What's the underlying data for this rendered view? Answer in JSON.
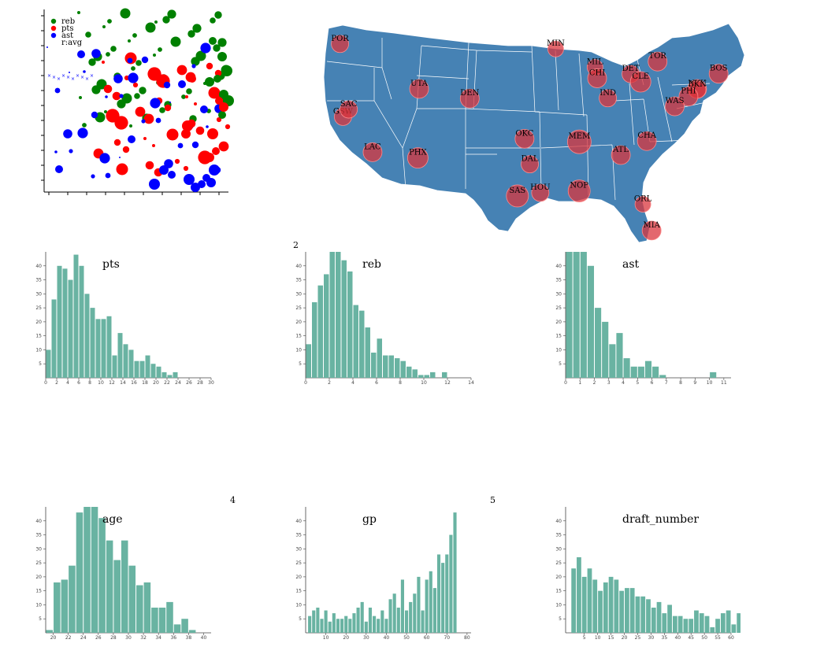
{
  "page_numbers": {
    "n2": "2",
    "n4": "4",
    "n5": "5"
  },
  "colors": {
    "reb": "#008000",
    "pts": "#ff0000",
    "ast": "#0000ff",
    "bar": "#69b3a2",
    "state_fill": "#4682b4",
    "city_fill": "#d9363e"
  },
  "chart_data": [
    {
      "type": "scatter",
      "legend": [
        "reb",
        "pts",
        "ast",
        "r:avg"
      ],
      "series": [
        {
          "name": "reb",
          "points": [
            [
              40,
              245
            ],
            [
              35,
              275
            ],
            [
              46,
              281
            ],
            [
              52,
              252
            ],
            [
              60,
              264
            ],
            [
              62,
              250
            ],
            [
              55,
              268
            ],
            [
              70,
              238
            ],
            [
              72,
              256
            ],
            [
              68,
              276
            ],
            [
              76,
              240
            ],
            [
              80,
              292
            ],
            [
              84,
              262
            ],
            [
              88,
              282
            ],
            [
              90,
              260
            ],
            [
              96,
              272
            ],
            [
              100,
              288
            ],
            [
              102,
              254
            ],
            [
              106,
              270
            ],
            [
              110,
              286
            ],
            [
              114,
              260
            ],
            [
              118,
              276
            ],
            [
              122,
              292
            ],
            [
              126,
              268
            ],
            [
              130,
              280
            ],
            [
              134,
              264
            ],
            [
              138,
              288
            ],
            [
              142,
              276
            ],
            [
              146,
              292
            ],
            [
              150,
              270
            ],
            [
              154,
              282
            ],
            [
              158,
              266
            ],
            [
              162,
              288
            ],
            [
              166,
              278
            ],
            [
              170,
              292
            ],
            [
              174,
              272
            ],
            [
              178,
              286
            ],
            [
              182,
              262
            ],
            [
              186,
              280
            ],
            [
              190,
              292
            ],
            [
              195,
              270
            ],
            [
              200,
              288
            ],
            [
              205,
              276
            ],
            [
              210,
              266
            ],
            [
              215,
              284
            ],
            [
              222,
              296
            ],
            [
              228,
              278
            ],
            [
              235,
              262
            ],
            [
              242,
              286
            ],
            [
              250,
              272
            ],
            [
              258,
              252
            ],
            [
              266,
              264
            ],
            [
              274,
              238
            ],
            [
              282,
              214
            ],
            [
              288,
              196
            ]
          ]
        },
        {
          "name": "pts",
          "points": [
            [
              36,
              52
            ],
            [
              44,
              64
            ],
            [
              50,
              76
            ],
            [
              56,
              84
            ],
            [
              62,
              80
            ],
            [
              66,
              96
            ],
            [
              70,
              106
            ],
            [
              74,
              112
            ],
            [
              78,
              120
            ],
            [
              82,
              124
            ],
            [
              86,
              130
            ],
            [
              90,
              144
            ],
            [
              94,
              150
            ],
            [
              98,
              156
            ],
            [
              102,
              160
            ],
            [
              106,
              162
            ],
            [
              110,
              168
            ],
            [
              114,
              172
            ],
            [
              118,
              178
            ],
            [
              122,
              180
            ],
            [
              126,
              184
            ],
            [
              130,
              190
            ],
            [
              134,
              194
            ],
            [
              140,
              198
            ],
            [
              146,
              200
            ],
            [
              152,
              204
            ],
            [
              158,
              206
            ],
            [
              164,
              210
            ],
            [
              170,
              212
            ],
            [
              176,
              214
            ],
            [
              182,
              216
            ],
            [
              188,
              218
            ],
            [
              194,
              220
            ],
            [
              200,
              222
            ],
            [
              206,
              224
            ],
            [
              212,
              226
            ],
            [
              218,
              228
            ],
            [
              224,
              230
            ],
            [
              232,
              232
            ],
            [
              240,
              234
            ]
          ]
        },
        {
          "name": "ast",
          "points": [
            [
              1.2,
              20
            ],
            [
              1.5,
              22
            ],
            [
              1.8,
              24
            ],
            [
              2,
              26
            ],
            [
              2.2,
              28
            ],
            [
              2.4,
              30
            ],
            [
              2.6,
              34
            ],
            [
              3,
              36
            ],
            [
              3.2,
              38
            ],
            [
              3.5,
              40
            ],
            [
              3.8,
              42
            ],
            [
              4,
              44
            ],
            [
              4.2,
              46
            ],
            [
              4.5,
              48
            ],
            [
              4.8,
              50
            ],
            [
              5,
              52
            ],
            [
              5.5,
              54
            ],
            [
              6,
              56
            ],
            [
              6.5,
              58
            ],
            [
              7,
              60
            ],
            [
              7.5,
              62
            ],
            [
              8,
              64
            ],
            [
              8.5,
              66
            ],
            [
              9,
              68
            ],
            [
              9.5,
              70
            ],
            [
              10,
              72
            ],
            [
              10.5,
              74
            ],
            [
              11,
              76
            ],
            [
              11.5,
              78
            ],
            [
              12,
              80
            ],
            [
              1,
              30
            ],
            [
              2,
              34
            ],
            [
              3,
              38
            ],
            [
              4,
              42
            ],
            [
              5,
              46
            ],
            [
              6,
              50
            ],
            [
              7,
              54
            ],
            [
              8,
              58
            ],
            [
              9,
              62
            ],
            [
              10,
              66
            ]
          ]
        },
        {
          "name": "r:avg",
          "points": [
            [
              1,
              20
            ],
            [
              2,
              40
            ],
            [
              3,
              60
            ],
            [
              4,
              80
            ],
            [
              5,
              100
            ],
            [
              6,
              120
            ],
            [
              7,
              140
            ],
            [
              8,
              160
            ],
            [
              9,
              180
            ],
            [
              10,
              200
            ]
          ]
        }
      ]
    },
    {
      "type": "map",
      "cities": [
        {
          "name": "POR",
          "lon": -122.68,
          "lat": 45.52,
          "r": 11
        },
        {
          "name": "MIN",
          "lon": -93.27,
          "lat": 44.98,
          "r": 10
        },
        {
          "name": "TOR",
          "lon": -79.38,
          "lat": 43.65,
          "r": 12
        },
        {
          "name": "MIL",
          "lon": -87.91,
          "lat": 43.04,
          "r": 10
        },
        {
          "name": "NYK",
          "lon": -73.99,
          "lat": 40.75,
          "r": 12
        },
        {
          "name": "DET",
          "lon": -83.05,
          "lat": 42.33,
          "r": 11
        },
        {
          "name": "BOS",
          "lon": -71.06,
          "lat": 42.36,
          "r": 12
        },
        {
          "name": "CHI",
          "lon": -87.62,
          "lat": 41.88,
          "r": 12
        },
        {
          "name": "CLE",
          "lon": -81.69,
          "lat": 41.5,
          "r": 13
        },
        {
          "name": "UTA",
          "lon": -111.89,
          "lat": 40.76,
          "r": 12
        },
        {
          "name": "BKN",
          "lon": -73.97,
          "lat": 40.68,
          "r": 11
        },
        {
          "name": "IND",
          "lon": -86.16,
          "lat": 39.77,
          "r": 11
        },
        {
          "name": "PHI",
          "lon": -75.17,
          "lat": 39.95,
          "r": 12
        },
        {
          "name": "DEN",
          "lon": -104.99,
          "lat": 39.74,
          "r": 12
        },
        {
          "name": "WAS",
          "lon": -77.04,
          "lat": 38.91,
          "r": 12
        },
        {
          "name": "GSW",
          "lon": -122.27,
          "lat": 37.8,
          "r": 11
        },
        {
          "name": "SAC",
          "lon": -121.49,
          "lat": 38.58,
          "r": 11
        },
        {
          "name": "CHA",
          "lon": -80.84,
          "lat": 35.23,
          "r": 12
        },
        {
          "name": "OKC",
          "lon": -97.52,
          "lat": 35.47,
          "r": 12
        },
        {
          "name": "MEM",
          "lon": -90.05,
          "lat": 35.15,
          "r": 15
        },
        {
          "name": "LAC",
          "lon": -118.24,
          "lat": 34.05,
          "r": 12
        },
        {
          "name": "ATL",
          "lon": -84.39,
          "lat": 33.75,
          "r": 12
        },
        {
          "name": "DAL",
          "lon": -96.8,
          "lat": 32.78,
          "r": 11
        },
        {
          "name": "PHX",
          "lon": -112.07,
          "lat": 33.45,
          "r": 13
        },
        {
          "name": "NOP",
          "lon": -90.07,
          "lat": 29.95,
          "r": 14
        },
        {
          "name": "SAS",
          "lon": -98.49,
          "lat": 29.42,
          "r": 14
        },
        {
          "name": "HOU",
          "lon": -95.37,
          "lat": 29.76,
          "r": 11
        },
        {
          "name": "ORL",
          "lon": -81.38,
          "lat": 28.54,
          "r": 10
        },
        {
          "name": "MIA",
          "lon": -80.19,
          "lat": 25.76,
          "r": 12
        }
      ]
    },
    {
      "type": "bar",
      "title": "pts",
      "bin_start": 0,
      "bin_width": 1,
      "xlim": [
        0,
        30
      ],
      "ylim": [
        0,
        45
      ],
      "xticks": [
        0,
        2,
        4,
        6,
        8,
        10,
        12,
        14,
        16,
        18,
        20,
        22,
        24,
        26,
        28,
        30
      ],
      "yticks": [
        5,
        10,
        15,
        20,
        25,
        30,
        35,
        40
      ],
      "values": [
        10,
        28,
        40,
        39,
        35,
        44,
        40,
        30,
        25,
        21,
        21,
        22,
        8,
        16,
        12,
        10,
        6,
        6,
        8,
        5,
        4,
        2,
        1,
        2,
        0,
        0,
        0,
        0,
        0,
        0
      ]
    },
    {
      "type": "bar",
      "title": "reb",
      "bin_start": 0,
      "bin_width": 0.5,
      "xlim": [
        0,
        14
      ],
      "ylim": [
        0,
        45
      ],
      "xticks": [
        0,
        2,
        4,
        6,
        8,
        10,
        12,
        14
      ],
      "yticks": [
        5,
        10,
        15,
        20,
        25,
        30,
        35,
        40
      ],
      "values": [
        12,
        27,
        33,
        37,
        45,
        45,
        42,
        38,
        26,
        24,
        18,
        9,
        14,
        8,
        8,
        7,
        6,
        4,
        3,
        1,
        1,
        2,
        0,
        2,
        0,
        0,
        0,
        0
      ]
    },
    {
      "type": "bar",
      "title": "ast",
      "bin_start": 0,
      "bin_width": 0.5,
      "xlim": [
        0,
        11.5
      ],
      "ylim": [
        0,
        45
      ],
      "xticks": [
        0,
        1,
        2,
        3,
        4,
        5,
        6,
        7,
        8,
        9,
        10,
        11
      ],
      "yticks": [
        5,
        10,
        15,
        20,
        25,
        30,
        35,
        40
      ],
      "values": [
        45,
        45,
        45,
        40,
        25,
        20,
        12,
        16,
        7,
        4,
        4,
        6,
        4,
        1,
        0,
        0,
        0,
        0,
        0,
        0,
        2,
        0,
        0
      ]
    },
    {
      "type": "bar",
      "title": "age",
      "bin_start": 19,
      "bin_width": 1,
      "xlim": [
        19,
        41
      ],
      "ylim": [
        0,
        45
      ],
      "xticks": [
        20,
        22,
        24,
        26,
        28,
        30,
        32,
        34,
        36,
        38,
        40
      ],
      "yticks": [
        5,
        10,
        15,
        20,
        25,
        30,
        35,
        40
      ],
      "values": [
        1,
        18,
        19,
        24,
        43,
        47,
        45,
        41,
        33,
        26,
        33,
        24,
        17,
        18,
        9,
        9,
        11,
        3,
        5,
        1,
        0,
        0
      ]
    },
    {
      "type": "bar",
      "title": "gp",
      "bin_start": 1,
      "bin_width": 2,
      "xlim": [
        0,
        82
      ],
      "ylim": [
        0,
        45
      ],
      "xticks": [
        10,
        20,
        30,
        40,
        50,
        60,
        70,
        80
      ],
      "yticks": [
        5,
        10,
        15,
        20,
        25,
        30,
        35,
        40
      ],
      "values": [
        6,
        8,
        9,
        5,
        8,
        4,
        7,
        5,
        5,
        6,
        5,
        7,
        9,
        11,
        4,
        9,
        6,
        5,
        8,
        5,
        12,
        14,
        9,
        19,
        8,
        11,
        14,
        20,
        8,
        19,
        22,
        16,
        28,
        25,
        28,
        35,
        43
      ]
    },
    {
      "type": "bar",
      "title": "draft_number",
      "bin_start": 0,
      "bin_width": 2,
      "xlim": [
        -2,
        60
      ],
      "ylim": [
        0,
        45
      ],
      "xticks": [
        5,
        10,
        15,
        20,
        25,
        30,
        35,
        40,
        45,
        50,
        55,
        60
      ],
      "yticks": [
        5,
        10,
        15,
        20,
        25,
        30,
        35,
        40
      ],
      "values": [
        23,
        27,
        20,
        23,
        19,
        15,
        18,
        20,
        19,
        15,
        16,
        16,
        13,
        13,
        12,
        9,
        11,
        7,
        10,
        6,
        6,
        5,
        5,
        8,
        7,
        6,
        2,
        5,
        7,
        8,
        3,
        7
      ]
    }
  ]
}
